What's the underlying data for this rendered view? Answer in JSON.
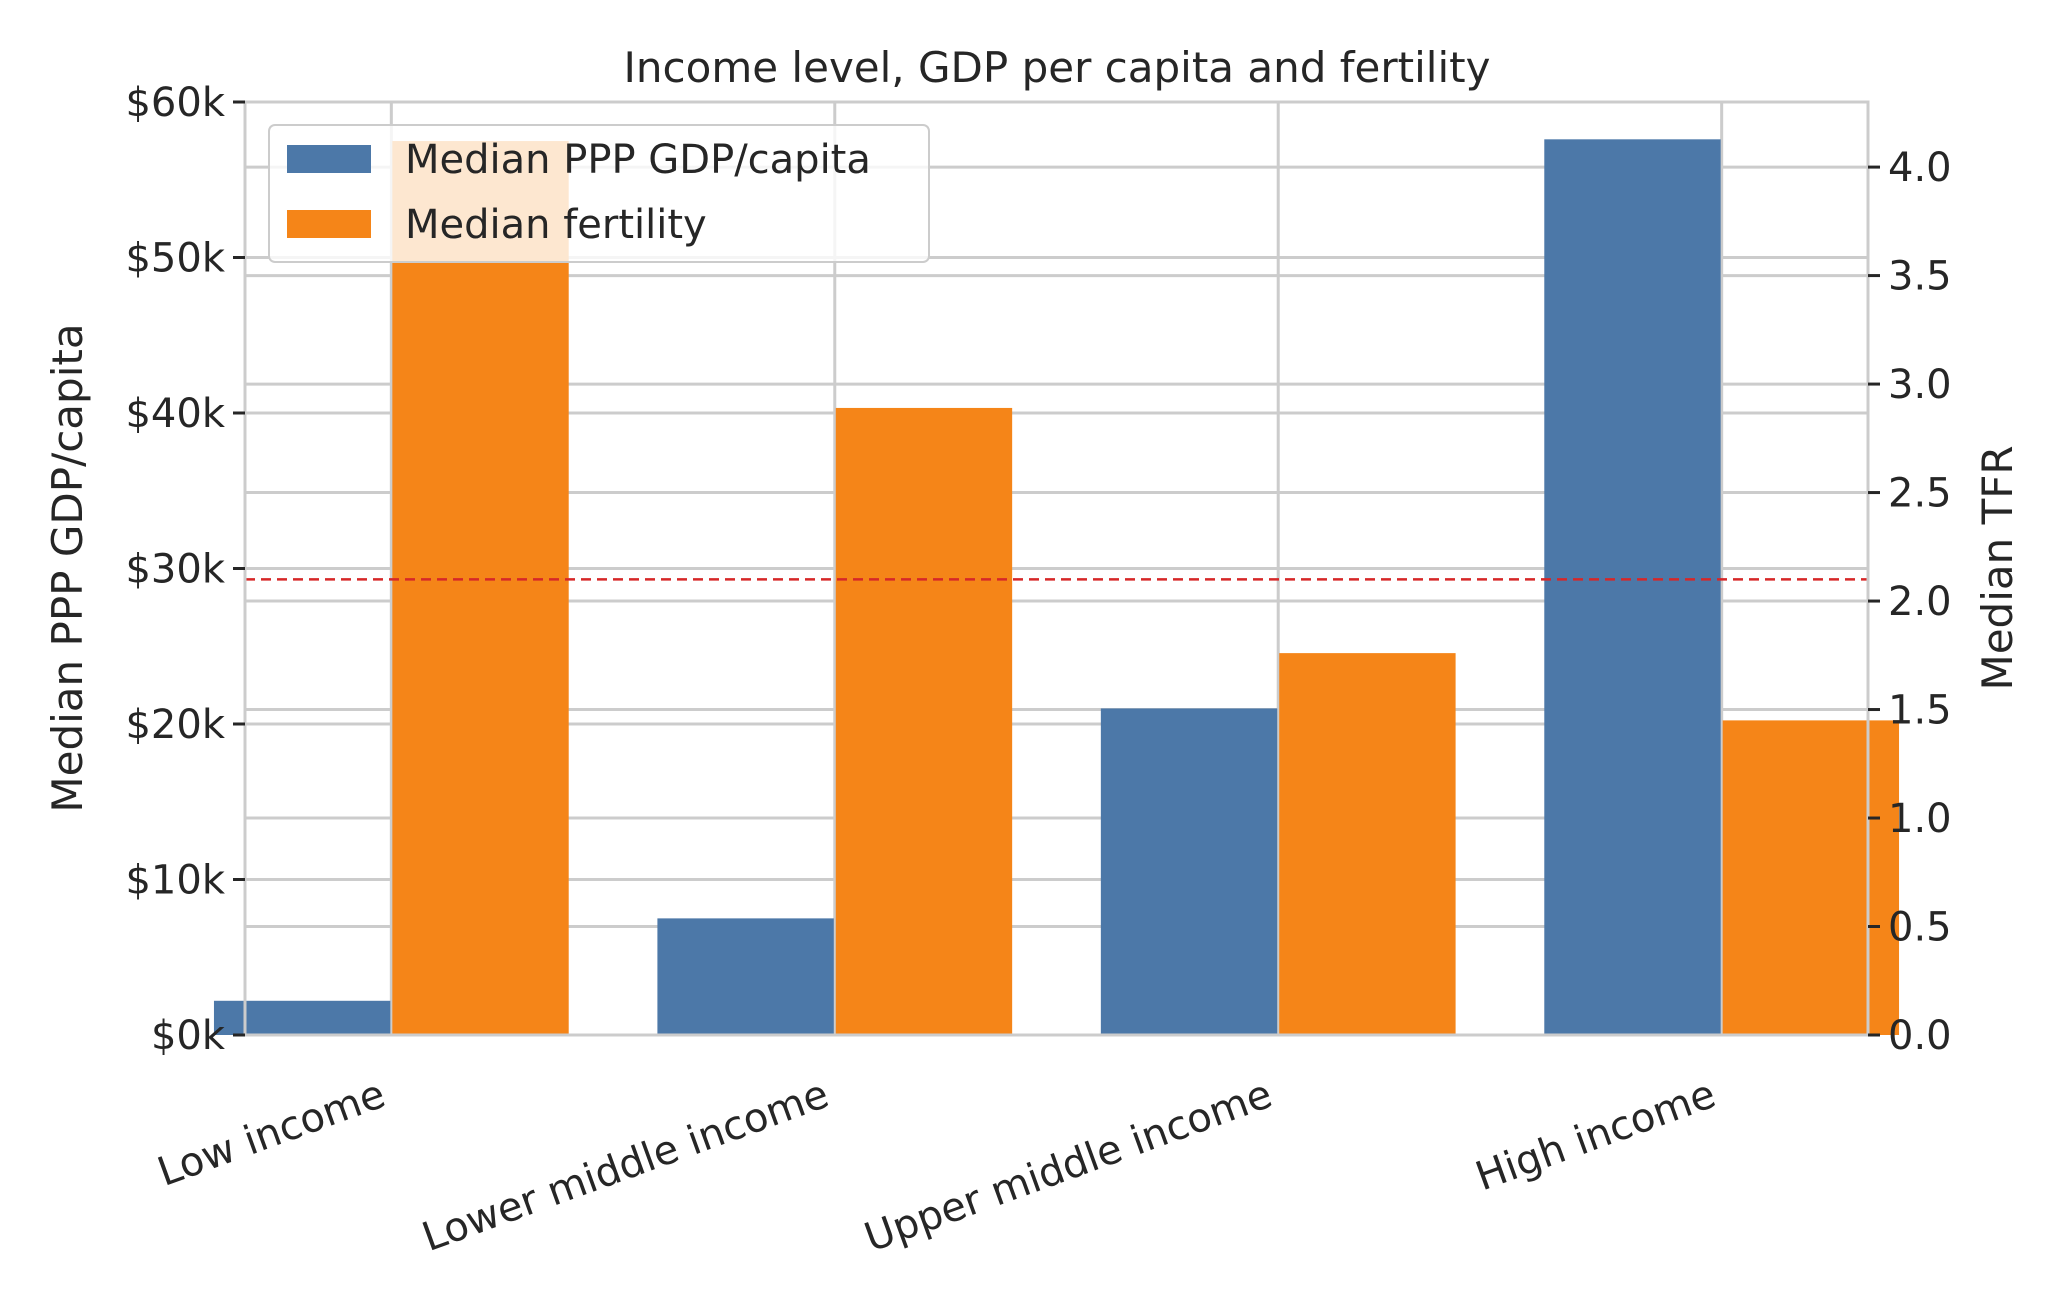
{
  "chart_data": {
    "type": "bar",
    "title": "Income level, GDP per capita and fertility",
    "categories": [
      "Low income",
      "Lower middle income",
      "Upper middle income",
      "High income"
    ],
    "series": [
      {
        "name": "Median PPP GDP/capita",
        "axis": "left",
        "color": "#4c78a8",
        "values": [
          2200,
          7500,
          21000,
          57600
        ]
      },
      {
        "name": "Median fertility",
        "axis": "right",
        "color": "#f58518",
        "values": [
          4.12,
          2.89,
          1.76,
          1.45
        ]
      }
    ],
    "ylabel": "Median PPP GDP/capita",
    "y2label": "Median TFR",
    "ylim": [
      0,
      60000
    ],
    "y2lim": [
      0,
      4.3
    ],
    "yticks": [
      0,
      10000,
      20000,
      30000,
      40000,
      50000,
      60000
    ],
    "ytick_labels": [
      "$0k",
      "$10k",
      "$20k",
      "$30k",
      "$40k",
      "$50k",
      "$60k"
    ],
    "y2ticks": [
      0,
      0.5,
      1,
      1.5,
      2,
      2.5,
      3,
      3.5,
      4
    ],
    "y2tick_labels": [
      "0.0",
      "0.5",
      "1.0",
      "1.5",
      "2.0",
      "2.5",
      "3.0",
      "3.5",
      "4.0"
    ],
    "reference_line": {
      "axis": "right",
      "value": 2.1,
      "color": "#d62728",
      "style": "dashed"
    },
    "grid": true,
    "legend_position": "top-left"
  }
}
